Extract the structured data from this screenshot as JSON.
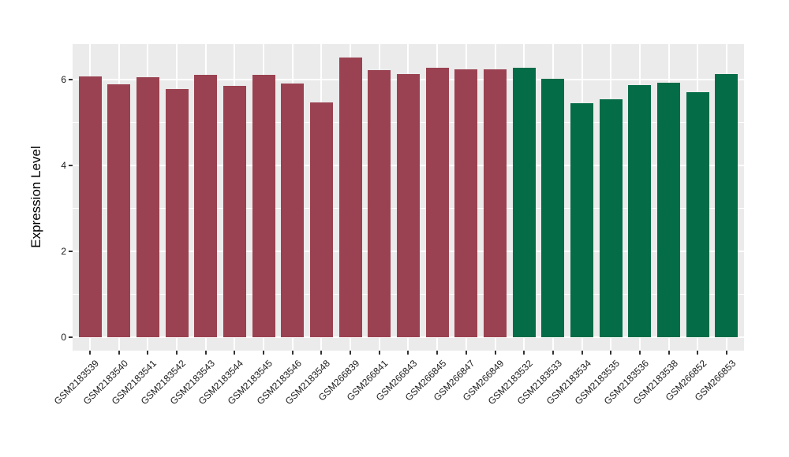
{
  "chart_data": {
    "type": "bar",
    "title": "",
    "xlabel": "",
    "ylabel": "Expression Level",
    "yticks": [
      0,
      2,
      4,
      6
    ],
    "ylim": [
      -0.31,
      6.84
    ],
    "grid": "white major gridlines at 0/2/4/6 and minor at 1/3/5 on grey panel; vertical major gridline at each category",
    "legend_position": "none",
    "categories": [
      "GSM2183539",
      "GSM2183540",
      "GSM2183541",
      "GSM2183542",
      "GSM2183543",
      "GSM2183544",
      "GSM2183545",
      "GSM2183546",
      "GSM2183548",
      "GSM266839",
      "GSM266841",
      "GSM266843",
      "GSM266845",
      "GSM266847",
      "GSM266849",
      "GSM2183532",
      "GSM2183533",
      "GSM2183534",
      "GSM2183535",
      "GSM2183536",
      "GSM2183538",
      "GSM266852",
      "GSM266853"
    ],
    "values": [
      6.08,
      5.9,
      6.07,
      5.78,
      6.12,
      5.86,
      6.12,
      5.92,
      5.48,
      6.52,
      6.23,
      6.13,
      6.28,
      6.25,
      6.24,
      6.29,
      6.02,
      5.45,
      5.54,
      5.88,
      5.93,
      5.71,
      6.13
    ],
    "groups": [
      "maroon",
      "maroon",
      "maroon",
      "maroon",
      "maroon",
      "maroon",
      "maroon",
      "maroon",
      "maroon",
      "maroon",
      "maroon",
      "maroon",
      "maroon",
      "maroon",
      "maroon",
      "green",
      "green",
      "green",
      "green",
      "green",
      "green",
      "green",
      "green"
    ],
    "group_colors": {
      "maroon": "#9A4251",
      "green": "#056C48"
    },
    "panel_bg": "#EBEBEB",
    "gridline_color": "#FFFFFF",
    "axis_text_color": "#1A1A1A",
    "tick_mark_color": "#333333"
  }
}
